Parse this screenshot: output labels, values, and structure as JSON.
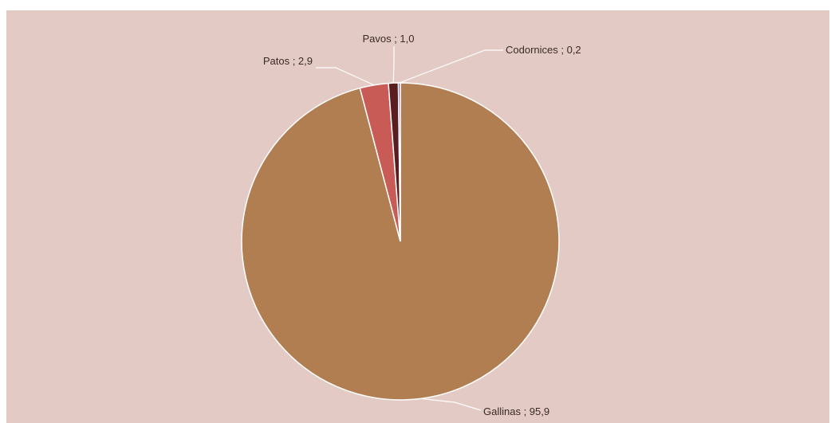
{
  "chart_data": {
    "type": "pie",
    "title": "",
    "slices": [
      {
        "name": "Gallinas",
        "value": 95.9,
        "label": "Gallinas ; 95,9",
        "color": "#b07e51"
      },
      {
        "name": "Patos",
        "value": 2.9,
        "label": "Patos ; 2,9",
        "color": "#c95b56"
      },
      {
        "name": "Pavos",
        "value": 1.0,
        "label": "Pavos ; 1,0",
        "color": "#5a1d20"
      },
      {
        "name": "Codornices",
        "value": 0.2,
        "label": "Codornices ; 0,2",
        "color": "#6d4b8a"
      }
    ],
    "background": "#e3cac4",
    "slice_border": "#ffffff",
    "leader_color": "#ffffff"
  }
}
